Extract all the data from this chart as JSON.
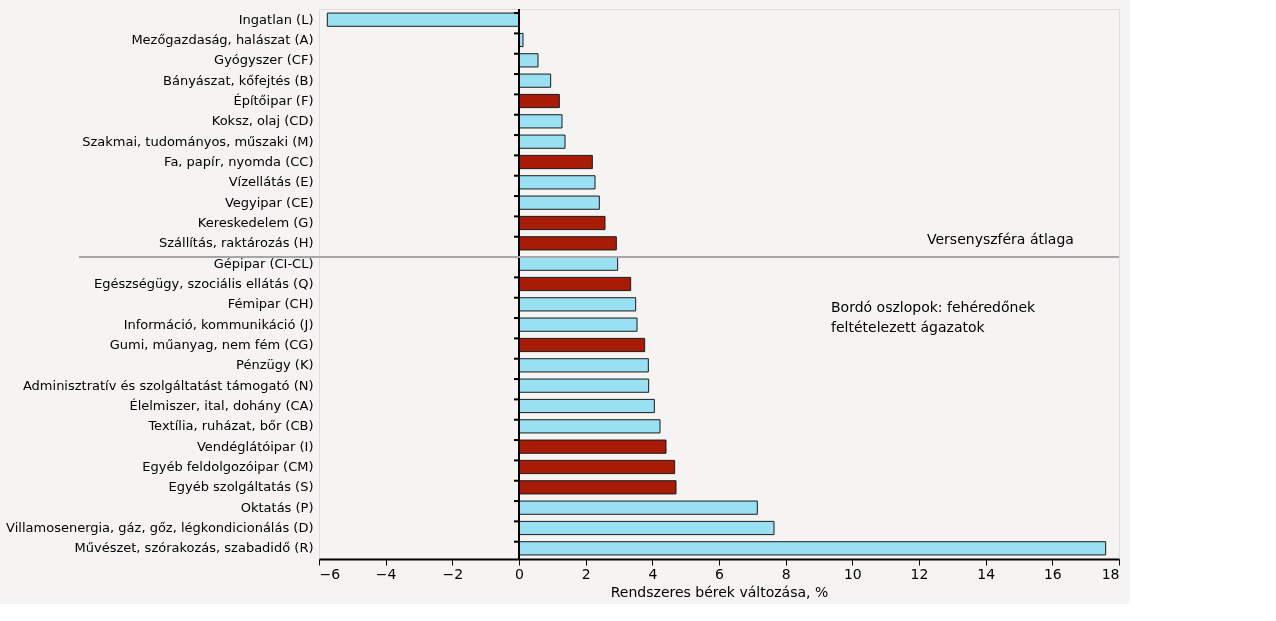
{
  "chart_data": {
    "type": "bar",
    "orientation": "horizontal",
    "xlabel": "Rendszeres bérek változása, %",
    "categories": [
      "Ingatlan (L)",
      "Mezőgazdaság, halászat (A)",
      "Gyógyszer (CF)",
      "Bányászat, kőfejtés (B)",
      "Építőipar (F)",
      "Koksz, olaj (CD)",
      "Szakmai, tudományos, műszaki (M)",
      "Fa, papír, nyomda (CC)",
      "Vízellátás (E)",
      "Vegyipar (CE)",
      "Kereskedelem (G)",
      "Szállítás, raktározás (H)",
      "Gépipar (CI-CL)",
      "Egészségügy, szociális ellátás (Q)",
      "Fémipar (CH)",
      "Információ, kommunikáció (J)",
      "Gumi, műanyag, nem fém (CG)",
      "Pénzügy (K)",
      "Adminisztratív és szolgáltatást támogató (N)",
      "Élelmiszer, ital, dohány (CA)",
      "Textília, ruházat, bőr (CB)",
      "Vendéglátóipar (I)",
      "Egyéb feldolgozóipar (CM)",
      "Egyéb szolgáltatás (S)",
      "Oktatás (P)",
      "Villamosenergia, gáz, gőz, légkondicionálás (D)",
      "Művészet, szórakozás, szabadidő (R)"
    ],
    "values": [
      -5.75,
      0.12,
      0.57,
      0.95,
      1.21,
      1.29,
      1.38,
      2.2,
      2.28,
      2.41,
      2.58,
      2.92,
      2.96,
      3.35,
      3.5,
      3.54,
      3.77,
      3.88,
      3.89,
      4.06,
      4.23,
      4.41,
      4.67,
      4.71,
      7.15,
      7.65,
      17.6
    ],
    "colors": [
      "#99e0f2",
      "#99e0f2",
      "#99e0f2",
      "#99e0f2",
      "#a81c07",
      "#99e0f2",
      "#99e0f2",
      "#a81c07",
      "#99e0f2",
      "#99e0f2",
      "#a81c07",
      "#a81c07",
      "#99e0f2",
      "#a81c07",
      "#99e0f2",
      "#99e0f2",
      "#a81c07",
      "#99e0f2",
      "#99e0f2",
      "#99e0f2",
      "#99e0f2",
      "#a81c07",
      "#a81c07",
      "#a81c07",
      "#99e0f2",
      "#99e0f2",
      "#99e0f2"
    ],
    "xlim": [
      -6,
      18
    ],
    "xticks": [
      {
        "value": -6,
        "label": "−6"
      },
      {
        "value": -4,
        "label": "−4"
      },
      {
        "value": -2,
        "label": "−2"
      },
      0,
      2,
      4,
      6,
      8,
      10,
      12,
      14,
      16,
      18
    ],
    "ref_lines": [
      {
        "axis": "y",
        "value": "Gépipar (CI-CL)",
        "label": "Versenyszféra átlaga",
        "color": "#a6a6a6"
      }
    ],
    "annotations": [
      "Bordó oszlopok: fehéredőnek feltételezett ágazatok"
    ],
    "grid": false
  }
}
